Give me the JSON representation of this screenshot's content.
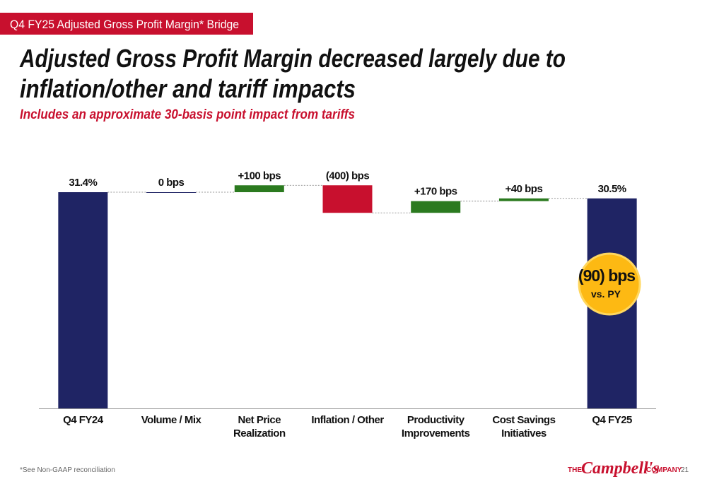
{
  "header": {
    "tag": "Q4 FY25 Adjusted Gross Profit Margin* Bridge",
    "title": [
      "Adjusted Gross Profit Margin decreased largely due to",
      "inflation/other and tariff impacts"
    ],
    "subtitle": "Includes an approximate 30-basis point impact from tariffs"
  },
  "chart_data": {
    "type": "waterfall",
    "categories": [
      "Q4 FY24",
      "Volume / Mix",
      "Net Price\nRealization",
      "Inflation / Other",
      "Productivity\nImprovements",
      "Cost Savings\nInitiatives",
      "Q4 FY25"
    ],
    "values": [
      31.4,
      0,
      1.0,
      -4.0,
      1.7,
      0.4,
      30.5
    ],
    "value_labels": [
      "31.4%",
      "0 bps",
      "+100 bps",
      "(400) bps",
      "+170 bps",
      "+40 bps",
      "30.5%"
    ],
    "totals": [
      true,
      false,
      false,
      false,
      false,
      false,
      true
    ],
    "colors": {
      "total": "#1f2464",
      "increase": "#2b7a1f",
      "decrease": "#c8102e"
    },
    "annotation": [
      "(90) bps",
      "vs. PY"
    ]
  },
  "footer": {
    "note": "*See Non-GAAP reconciliation",
    "logo": [
      "THE",
      "Campbell's",
      "COMPANY"
    ],
    "page": 21
  }
}
